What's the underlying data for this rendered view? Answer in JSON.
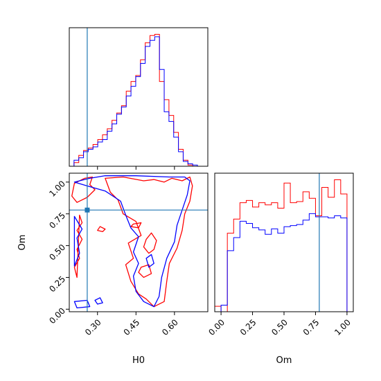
{
  "chart_data": {
    "type": "corner",
    "colors": {
      "red": "#ff0000",
      "blue": "#0000ff",
      "truth": "#1f77b4"
    },
    "truth": {
      "H0": 0.26,
      "Om": 0.78
    },
    "panels": [
      {
        "id": "H0-hist",
        "type": "histogram",
        "xlim": [
          0.19,
          0.73
        ],
        "x_tick_labels_visible": false,
        "yticks_visible": false,
        "bins": [
          0.19,
          0.2085,
          0.227,
          0.2455,
          0.264,
          0.2825,
          0.301,
          0.3195,
          0.338,
          0.3565,
          0.375,
          0.3935,
          0.412,
          0.4305,
          0.449,
          0.4675,
          0.486,
          0.5045,
          0.523,
          0.5415,
          0.56,
          0.5785,
          0.597,
          0.6155,
          0.634,
          0.6525,
          0.671,
          0.6895,
          0.708,
          0.7265
        ],
        "series": [
          {
            "name": "",
            "color": "red",
            "values": [
              0,
              3,
              9,
              13,
              15,
              18,
              22,
              26,
              31,
              38,
              44,
              50,
              62,
              70,
              75,
              88,
              102,
              108,
              109,
              70,
              55,
              42,
              28,
              14,
              5,
              1,
              0,
              0,
              0
            ]
          },
          {
            "name": "",
            "color": "blue",
            "values": [
              0,
              5,
              7,
              12,
              14,
              16,
              20,
              22,
              29,
              35,
              43,
              49,
              58,
              66,
              74,
              85,
              99,
              104,
              107,
              80,
              45,
              37,
              24,
              12,
              4,
              2,
              1,
              0,
              0
            ]
          }
        ]
      },
      {
        "id": "H0-Om-contour",
        "type": "contour",
        "xlim": [
          0.19,
          0.73
        ],
        "ylim": [
          -0.02,
          1.07
        ],
        "xticks": [
          0.3,
          0.45,
          0.6
        ],
        "xtick_labels": [
          "0.30",
          "0.45",
          "0.60"
        ],
        "yticks": [
          0.0,
          0.25,
          0.5,
          0.75,
          1.0
        ],
        "ytick_labels": [
          "0.00",
          "0.25",
          "0.50",
          "0.75",
          "1.00"
        ],
        "xlabel": "H0",
        "ylabel": "Om",
        "series": [
          {
            "name": "",
            "color": "red",
            "contours": [
              [
                [
                  0.21,
                  0.99
                ],
                [
                  0.25,
                  1.03
                ],
                [
                  0.28,
                  1.04
                ],
                [
                  0.27,
                  0.98
                ],
                [
                  0.29,
                  0.94
                ],
                [
                  0.26,
                  0.88
                ],
                [
                  0.22,
                  0.84
                ],
                [
                  0.2,
                  0.89
                ]
              ],
              [
                [
                  0.33,
                  1.03
                ],
                [
                  0.4,
                  1.04
                ],
                [
                  0.48,
                  1.01
                ],
                [
                  0.52,
                  1.02
                ],
                [
                  0.56,
                  1.0
                ],
                [
                  0.59,
                  1.03
                ],
                [
                  0.63,
                  1.01
                ],
                [
                  0.66,
                  1.04
                ],
                [
                  0.67,
                  0.97
                ],
                [
                  0.66,
                  0.85
                ],
                [
                  0.64,
                  0.75
                ],
                [
                  0.63,
                  0.62
                ],
                [
                  0.61,
                  0.48
                ],
                [
                  0.58,
                  0.36
                ],
                [
                  0.57,
                  0.22
                ],
                [
                  0.56,
                  0.06
                ],
                [
                  0.52,
                  0.02
                ],
                [
                  0.49,
                  0.08
                ],
                [
                  0.46,
                  0.12
                ],
                [
                  0.43,
                  0.22
                ],
                [
                  0.41,
                  0.35
                ],
                [
                  0.44,
                  0.4
                ],
                [
                  0.42,
                  0.52
                ],
                [
                  0.47,
                  0.58
                ],
                [
                  0.45,
                  0.69
                ],
                [
                  0.4,
                  0.75
                ],
                [
                  0.38,
                  0.86
                ],
                [
                  0.35,
                  0.92
                ]
              ],
              [
                [
                  0.23,
                  0.74
                ],
                [
                  0.24,
                  0.68
                ],
                [
                  0.22,
                  0.62
                ],
                [
                  0.24,
                  0.55
                ],
                [
                  0.22,
                  0.47
                ],
                [
                  0.23,
                  0.4
                ],
                [
                  0.21,
                  0.33
                ],
                [
                  0.22,
                  0.25
                ]
              ],
              [
                [
                  0.31,
                  0.65
                ],
                [
                  0.33,
                  0.63
                ],
                [
                  0.32,
                  0.61
                ],
                [
                  0.3,
                  0.62
                ]
              ],
              [
                [
                  0.44,
                  0.67
                ],
                [
                  0.47,
                  0.68
                ],
                [
                  0.46,
                  0.64
                ],
                [
                  0.43,
                  0.65
                ]
              ],
              [
                [
                  0.49,
                  0.55
                ],
                [
                  0.51,
                  0.6
                ],
                [
                  0.53,
                  0.54
                ],
                [
                  0.52,
                  0.47
                ],
                [
                  0.5,
                  0.44
                ],
                [
                  0.48,
                  0.49
                ]
              ],
              [
                [
                  0.47,
                  0.33
                ],
                [
                  0.5,
                  0.35
                ],
                [
                  0.51,
                  0.28
                ],
                [
                  0.48,
                  0.25
                ],
                [
                  0.46,
                  0.29
                ]
              ]
            ]
          },
          {
            "name": "",
            "color": "blue",
            "contours": [
              [
                [
                  0.21,
                  1.0
                ],
                [
                  0.27,
                  1.03
                ],
                [
                  0.33,
                  1.05
                ],
                [
                  0.45,
                  1.05
                ],
                [
                  0.58,
                  1.04
                ],
                [
                  0.64,
                  1.04
                ],
                [
                  0.66,
                  1.01
                ],
                [
                  0.65,
                  0.9
                ],
                [
                  0.63,
                  0.78
                ],
                [
                  0.61,
                  0.66
                ],
                [
                  0.6,
                  0.53
                ],
                [
                  0.57,
                  0.4
                ],
                [
                  0.55,
                  0.25
                ],
                [
                  0.54,
                  0.1
                ],
                [
                  0.52,
                  0.02
                ],
                [
                  0.48,
                  0.06
                ],
                [
                  0.45,
                  0.14
                ],
                [
                  0.44,
                  0.26
                ],
                [
                  0.46,
                  0.36
                ],
                [
                  0.44,
                  0.45
                ],
                [
                  0.46,
                  0.57
                ],
                [
                  0.43,
                  0.64
                ],
                [
                  0.41,
                  0.74
                ],
                [
                  0.39,
                  0.85
                ],
                [
                  0.33,
                  0.93
                ],
                [
                  0.26,
                  0.97
                ]
              ],
              [
                [
                  0.21,
                  0.73
                ],
                [
                  0.24,
                  0.63
                ],
                [
                  0.22,
                  0.56
                ],
                [
                  0.23,
                  0.44
                ],
                [
                  0.21,
                  0.34
                ]
              ],
              [
                [
                  0.49,
                  0.4
                ],
                [
                  0.51,
                  0.43
                ],
                [
                  0.52,
                  0.36
                ],
                [
                  0.5,
                  0.33
                ]
              ],
              [
                [
                  0.29,
                  0.07
                ],
                [
                  0.31,
                  0.09
                ],
                [
                  0.32,
                  0.05
                ],
                [
                  0.3,
                  0.04
                ]
              ],
              [
                [
                  0.21,
                  0.06
                ],
                [
                  0.26,
                  0.07
                ],
                [
                  0.27,
                  0.02
                ],
                [
                  0.22,
                  0.01
                ]
              ]
            ]
          }
        ]
      },
      {
        "id": "Om-hist",
        "type": "histogram",
        "xlim": [
          -0.05,
          1.05
        ],
        "xticks": [
          0.0,
          0.25,
          0.5,
          0.75,
          1.0
        ],
        "xtick_labels": [
          "0.00",
          "0.25",
          "0.50",
          "0.75",
          "1.00"
        ],
        "xlabel": "Om",
        "yticks_visible": false,
        "bins": [
          -0.05,
          0.0,
          0.05,
          0.1,
          0.15,
          0.2,
          0.25,
          0.3,
          0.35,
          0.4,
          0.45,
          0.5,
          0.55,
          0.6,
          0.65,
          0.7,
          0.75,
          0.8,
          0.85,
          0.9,
          0.95,
          1.0,
          1.05
        ],
        "series": [
          {
            "name": "",
            "color": "red",
            "values": [
              5,
              0,
              72,
              85,
              100,
              102,
              96,
              100,
              98,
              100,
              95,
              118,
              100,
              101,
              110,
              104,
              88,
              114,
              105,
              121,
              108,
              0
            ]
          },
          {
            "name": "",
            "color": "blue",
            "values": [
              0,
              6,
              56,
              68,
              83,
              81,
              77,
              75,
              71,
              76,
              72,
              78,
              79,
              80,
              84,
              90,
              87,
              87,
              86,
              88,
              86,
              0
            ]
          }
        ]
      }
    ]
  }
}
